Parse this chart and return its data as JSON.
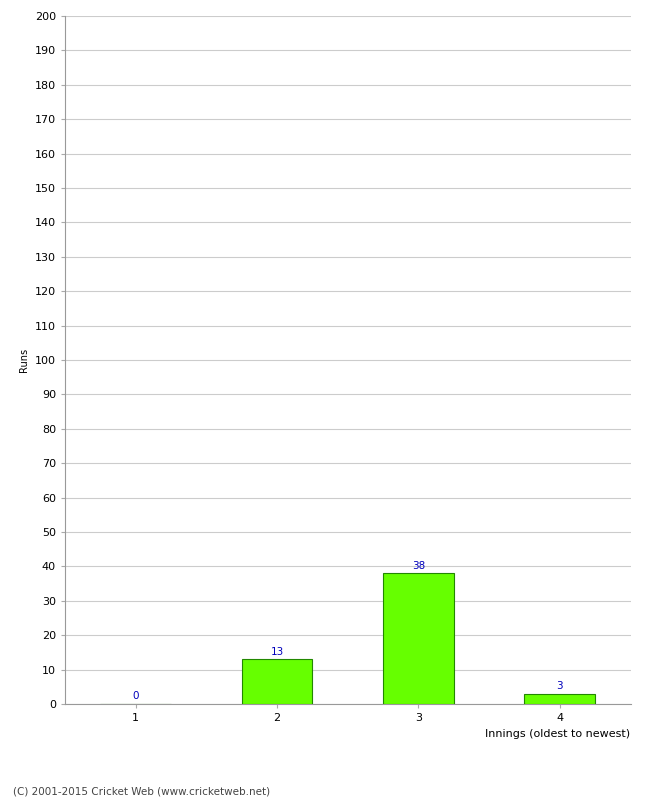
{
  "xlabel": "Innings (oldest to newest)",
  "ylabel": "Runs",
  "categories": [
    1,
    2,
    3,
    4
  ],
  "values": [
    0,
    13,
    38,
    3
  ],
  "bar_color": "#66ff00",
  "bar_edge_color": "#228800",
  "value_label_color": "#0000bb",
  "value_label_fontsize": 7.5,
  "ylim": [
    0,
    200
  ],
  "yticks": [
    0,
    10,
    20,
    30,
    40,
    50,
    60,
    70,
    80,
    90,
    100,
    110,
    120,
    130,
    140,
    150,
    160,
    170,
    180,
    190,
    200
  ],
  "xtick_fontsize": 8,
  "ytick_fontsize": 8,
  "xlabel_fontsize": 8,
  "ylabel_fontsize": 7,
  "background_color": "#ffffff",
  "grid_color": "#cccccc",
  "footer_text": "(C) 2001-2015 Cricket Web (www.cricketweb.net)",
  "footer_fontsize": 7.5,
  "footer_color": "#444444"
}
